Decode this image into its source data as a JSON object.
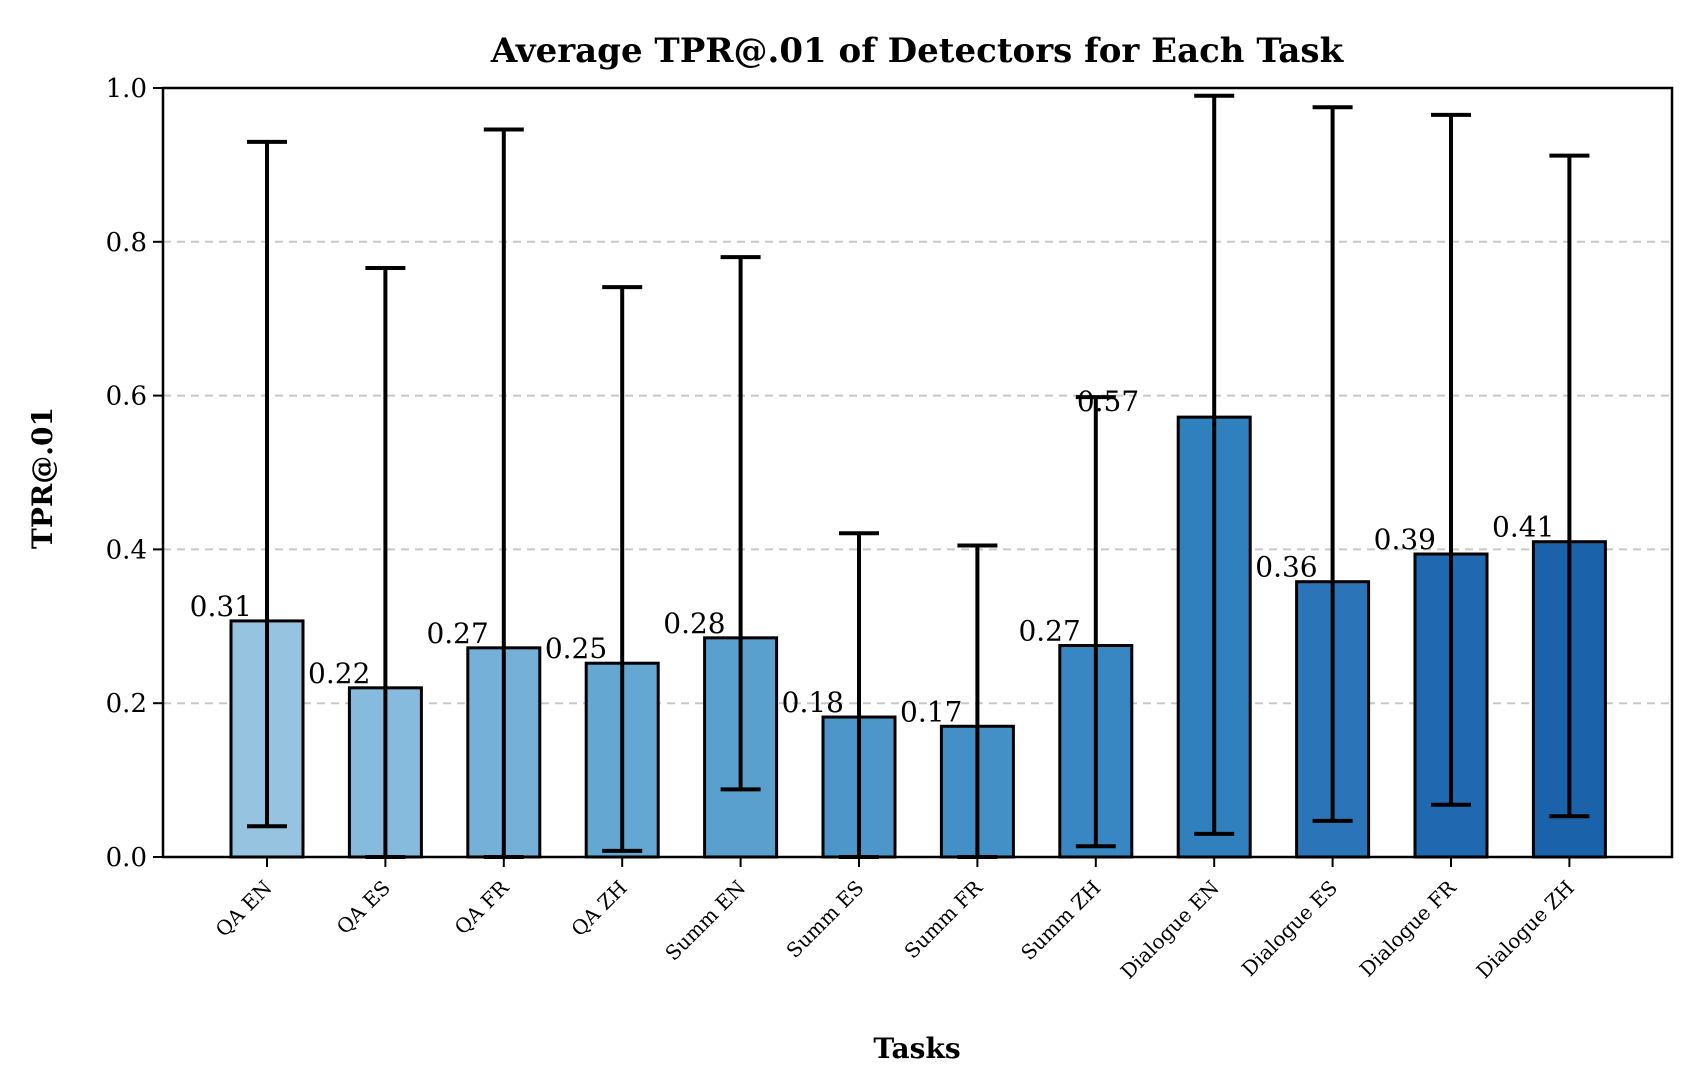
{
  "chart_data": {
    "type": "bar",
    "title": "Average TPR@.01 of Detectors for Each Task",
    "xlabel": "Tasks",
    "ylabel": "TPR@.01",
    "ylim": [
      0,
      1.0
    ],
    "yticks": [
      "0.0",
      "0.2",
      "0.4",
      "0.6",
      "0.8",
      "1.0"
    ],
    "grid": "y-dashed",
    "categories": [
      "QA EN",
      "QA ES",
      "QA FR",
      "QA ZH",
      "Summ EN",
      "Summ ES",
      "Summ FR",
      "Summ ZH",
      "Dialogue EN",
      "Dialogue ES",
      "Dialogue FR",
      "Dialogue ZH"
    ],
    "values": [
      0.307,
      0.22,
      0.272,
      0.252,
      0.285,
      0.182,
      0.17,
      0.275,
      0.572,
      0.358,
      0.394,
      0.41
    ],
    "value_labels": [
      "0.31",
      "0.22",
      "0.27",
      "0.25",
      "0.28",
      "0.18",
      "0.17",
      "0.27",
      "0.57",
      "0.36",
      "0.39",
      "0.41"
    ],
    "error_low": [
      0.04,
      0.0,
      0.0,
      0.008,
      0.088,
      0.0,
      0.0,
      0.014,
      0.03,
      0.047,
      0.068,
      0.053
    ],
    "error_high": [
      0.93,
      0.766,
      0.946,
      0.741,
      0.78,
      0.421,
      0.405,
      0.598,
      0.99,
      0.975,
      0.965,
      0.912
    ],
    "colors": [
      "#96c3e0",
      "#87bbdd",
      "#74b0d8",
      "#65a7d3",
      "#5aa0cf",
      "#4d96c9",
      "#4290c6",
      "#3987c2",
      "#3080be",
      "#2a74b7",
      "#2069b0",
      "#1a63aa"
    ]
  }
}
